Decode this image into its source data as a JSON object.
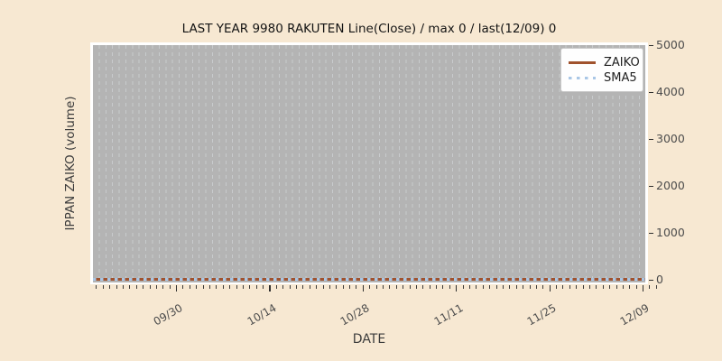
{
  "title": "LAST YEAR 9980 RAKUTEN Line(Close) / max 0 / last(12/09) 0",
  "axes": {
    "x_label": "DATE",
    "y_label": "IPPAN ZAIKO (volume)",
    "x_ticks": [
      "09/30",
      "10/14",
      "10/28",
      "11/11",
      "11/25",
      "12/09"
    ],
    "y_ticks": [
      "0",
      "1000",
      "2000",
      "3000",
      "4000",
      "5000"
    ]
  },
  "legend": {
    "items": [
      {
        "label": "ZAIKO",
        "color": "#a0522d",
        "line_style": "solid"
      },
      {
        "label": "SMA5",
        "color": "#a9c7e6",
        "line_style": "dotted"
      }
    ]
  },
  "colors": {
    "figure_bg": "#f7e8d2",
    "plot_bg": "#ffffff",
    "plot_fill": "#b4b4b4",
    "gridline": "#c8cbcd",
    "zaiko_line": "#a0522d",
    "sma5_line": "#a9c7e6",
    "tick_label": "#4c4c4c"
  },
  "chart_data": {
    "type": "line",
    "title": "LAST YEAR 9980 RAKUTEN Line(Close) / max 0 / last(12/09) 0",
    "xlabel": "DATE",
    "ylabel": "IPPAN ZAIKO (volume)",
    "x_tick_labels": [
      "09/30",
      "10/14",
      "10/28",
      "11/11",
      "11/25",
      "12/09"
    ],
    "y_ticks": [
      0,
      1000,
      2000,
      3000,
      4000,
      5000
    ],
    "ylim": [
      -100,
      5060
    ],
    "grid": "vertical-dashed-daily",
    "legend_position": "upper right",
    "series": [
      {
        "name": "ZAIKO",
        "style": "solid",
        "color": "#a0522d",
        "constant_value": 0,
        "values_at_ticks": [
          0,
          0,
          0,
          0,
          0,
          0
        ]
      },
      {
        "name": "SMA5",
        "style": "dotted",
        "color": "#a9c7e6",
        "constant_value": 0,
        "values_at_ticks": [
          0,
          0,
          0,
          0,
          0,
          0
        ]
      }
    ],
    "max": 0,
    "last": {
      "date": "12/09",
      "value": 0
    }
  }
}
